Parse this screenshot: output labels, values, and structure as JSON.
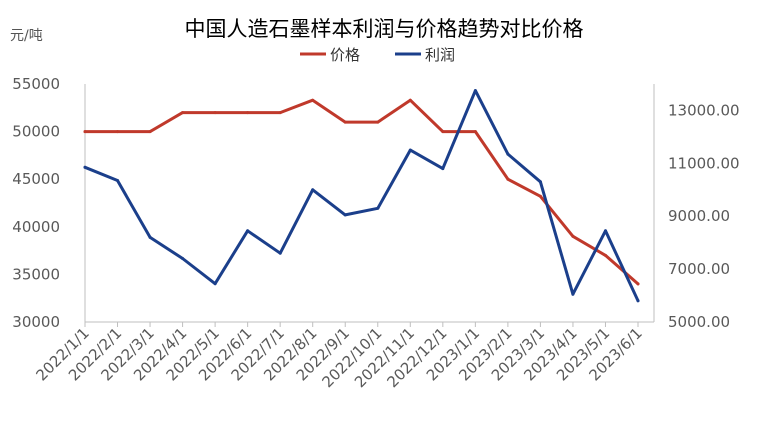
{
  "chart_data": {
    "type": "line",
    "title": "中国人造石墨样本利润与价格趋势对比价格",
    "y_unit_label": "元/吨",
    "legend": {
      "placement": "top-center"
    },
    "categories": [
      "2022/1/1",
      "2022/2/1",
      "2022/3/1",
      "2022/4/1",
      "2022/5/1",
      "2022/6/1",
      "2022/7/1",
      "2022/8/1",
      "2022/9/1",
      "2022/10/1",
      "2022/11/1",
      "2022/12/1",
      "2023/1/1",
      "2023/2/1",
      "2023/3/1",
      "2023/4/1",
      "2023/5/1",
      "2023/6/1"
    ],
    "series": [
      {
        "name": "价格",
        "axis": "left",
        "color": "#C0392B",
        "values": [
          50000,
          50000,
          50000,
          52000,
          52000,
          52000,
          52000,
          53300,
          51000,
          51000,
          53300,
          50000,
          50000,
          45000,
          43200,
          39000,
          37000,
          34000
        ]
      },
      {
        "name": "利润",
        "axis": "right",
        "color": "#1B3F8B",
        "values": [
          10850,
          10350,
          8200,
          7400,
          6450,
          8450,
          7600,
          10000,
          9050,
          9300,
          11500,
          10800,
          13750,
          11350,
          10300,
          6050,
          8450,
          5800
        ]
      }
    ],
    "y_left": {
      "min": 30000,
      "max": 55000,
      "ticks": [
        "30000",
        "35000",
        "40000",
        "45000",
        "50000",
        "55000"
      ]
    },
    "y_right": {
      "min": 5000,
      "max": 14000,
      "ticks": [
        "5000.00",
        "7000.00",
        "9000.00",
        "11000.00",
        "13000.00"
      ]
    },
    "grid": false
  }
}
